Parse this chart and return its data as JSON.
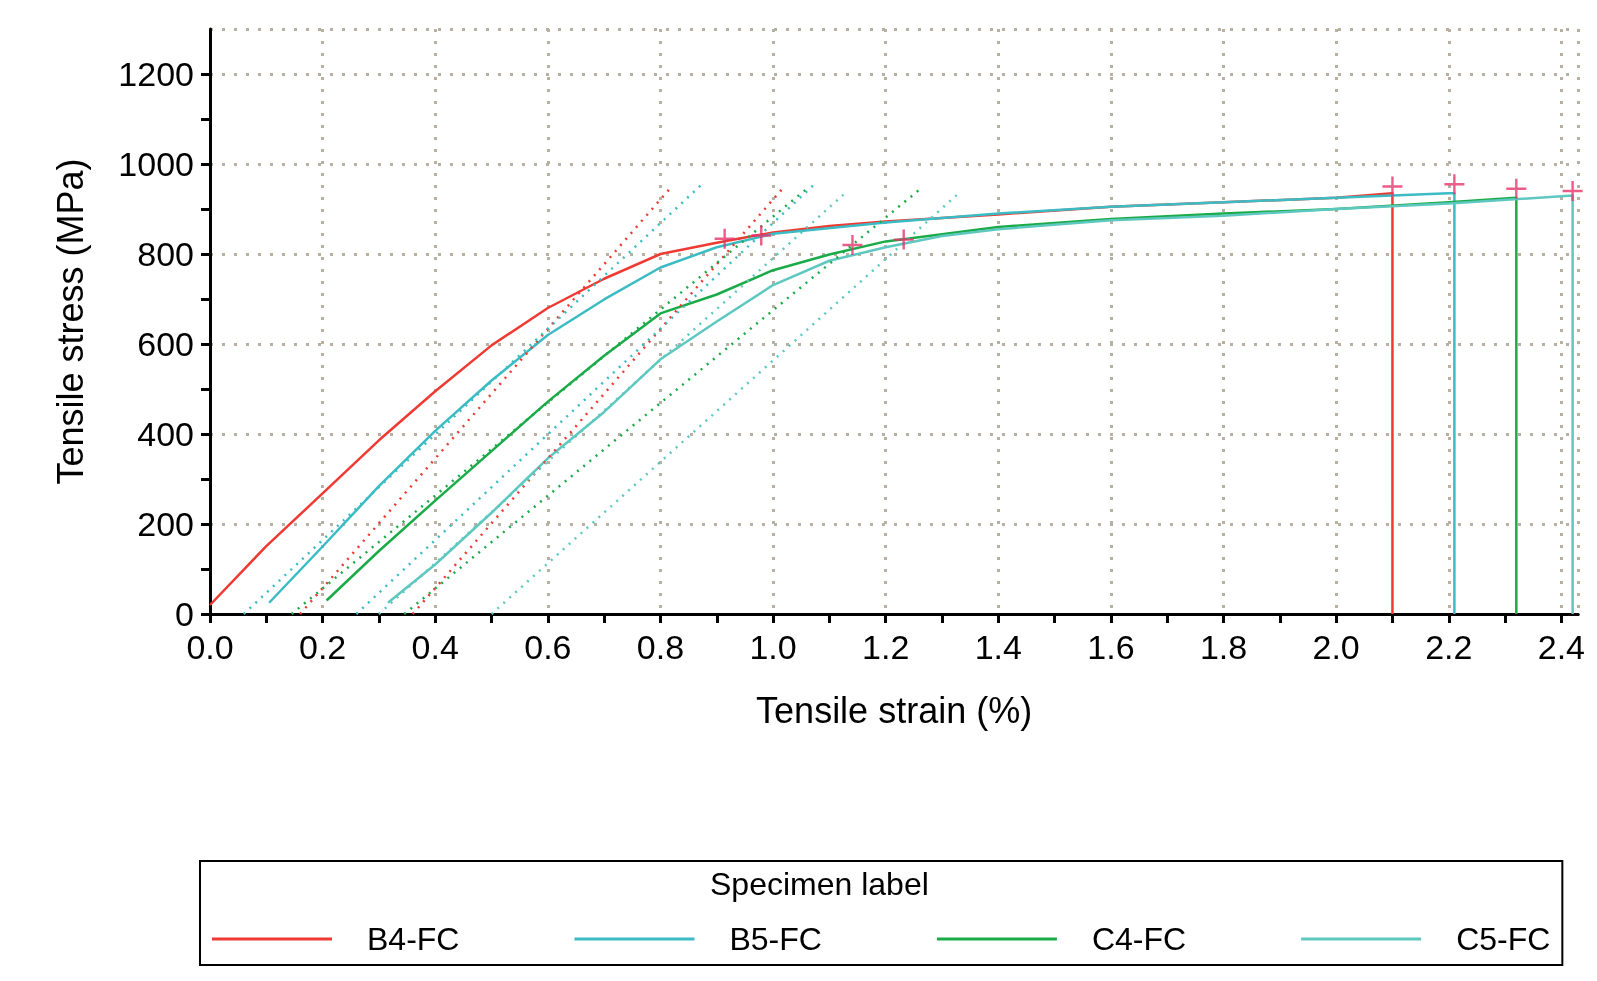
{
  "chart_data": {
    "type": "line",
    "xlabel": "Tensile strain (%)",
    "ylabel": "Tensile stress (MPa)",
    "legend_title": "Specimen label",
    "legend": "bottom",
    "grid": true,
    "marker": "none",
    "line_style": "solid",
    "xlim": [
      0,
      2.43
    ],
    "ylim": [
      0,
      1300
    ],
    "xticks": [
      {
        "value": 0,
        "label": "0.0"
      },
      {
        "value": 0.1,
        "label": null
      },
      0.2,
      {
        "value": 0.3,
        "label": null
      },
      0.4,
      {
        "value": 0.5,
        "label": null
      },
      0.6,
      {
        "value": 0.7,
        "label": null
      },
      0.8,
      {
        "value": 0.9,
        "label": null
      },
      {
        "value": 1,
        "label": "1.0"
      },
      {
        "value": 1.1,
        "label": null
      },
      1.2,
      {
        "value": 1.3,
        "label": null
      },
      1.4,
      {
        "value": 1.5,
        "label": null
      },
      1.6,
      {
        "value": 1.7,
        "label": null
      },
      1.8,
      {
        "value": 1.9,
        "label": null
      },
      {
        "value": 2,
        "label": "2.0"
      },
      {
        "value": 2.1,
        "label": null
      },
      2.2,
      {
        "value": 2.3,
        "label": null
      },
      2.4
    ],
    "yticks": [
      0,
      {
        "value": 100,
        "label": null
      },
      200,
      {
        "value": 300,
        "label": null
      },
      400,
      {
        "value": 500,
        "label": null
      },
      600,
      {
        "value": 700,
        "label": null
      },
      800,
      {
        "value": 900,
        "label": null
      },
      1000,
      {
        "value": 1100,
        "label": null
      },
      1200
    ],
    "series": [
      {
        "name": "B4-FC",
        "color": "#ee3a33",
        "x": [
          0,
          0.1,
          0.2,
          0.3,
          0.4,
          0.5,
          0.6,
          0.7,
          0.8,
          0.9,
          1.0,
          1.1,
          1.2,
          1.4,
          1.6,
          1.8,
          2.0,
          2.1,
          2.1
        ],
        "values": [
          20,
          151,
          268,
          386,
          495,
          597,
          680,
          745,
          800,
          825,
          848,
          862,
          872,
          888,
          905,
          915,
          925,
          935,
          0
        ]
      },
      {
        "name": "B5-FC",
        "color": "#3bbcc4",
        "x": [
          0.105,
          0.2,
          0.3,
          0.4,
          0.5,
          0.6,
          0.7,
          0.8,
          0.9,
          1.0,
          1.2,
          1.4,
          1.6,
          1.8,
          2.0,
          2.2,
          2.21,
          2.21
        ],
        "values": [
          25,
          150,
          284,
          407,
          519,
          620,
          699,
          770,
          815,
          845,
          870,
          890,
          905,
          915,
          925,
          935,
          935,
          0
        ]
      },
      {
        "name": "C4-FC",
        "color": "#1aab48",
        "x": [
          0.207,
          0.3,
          0.4,
          0.5,
          0.6,
          0.7,
          0.8,
          0.9,
          1.0,
          1.1,
          1.2,
          1.4,
          1.6,
          1.8,
          2.0,
          2.2,
          2.32,
          2.32
        ],
        "values": [
          30,
          140,
          252,
          362,
          472,
          574,
          668,
          710,
          764,
          799,
          828,
          860,
          878,
          890,
          900,
          915,
          925,
          0
        ]
      },
      {
        "name": "C5-FC",
        "color": "#5ec8c0",
        "x": [
          0.316,
          0.4,
          0.5,
          0.6,
          0.7,
          0.8,
          0.9,
          1.0,
          1.1,
          1.2,
          1.3,
          1.4,
          1.6,
          1.8,
          2.0,
          2.2,
          2.42,
          2.42
        ],
        "values": [
          25,
          110,
          225,
          346,
          449,
          566,
          650,
          731,
          785,
          815,
          840,
          855,
          875,
          885,
          900,
          912,
          930,
          0
        ]
      },
      {
        "type": "line",
        "line_style": "dotted",
        "color": "#ee3a33",
        "x": [
          0.16,
          0.82
        ],
        "values": [
          0,
          950
        ]
      },
      {
        "type": "line",
        "line_style": "dotted",
        "color": "#ee3a33",
        "x": [
          0.36,
          1.02
        ],
        "values": [
          0,
          950
        ]
      },
      {
        "type": "line",
        "line_style": "dotted",
        "color": "#3bbcc4",
        "x": [
          0.06,
          0.877
        ],
        "values": [
          0,
          959
        ]
      },
      {
        "type": "line",
        "line_style": "dotted",
        "color": "#3bbcc4",
        "x": [
          0.26,
          1.075
        ],
        "values": [
          0,
          957
        ]
      },
      {
        "type": "line",
        "line_style": "dotted",
        "color": "#1aab48",
        "x": [
          0.145,
          1.057
        ],
        "values": [
          0,
          942
        ]
      },
      {
        "type": "line",
        "line_style": "dotted",
        "color": "#1aab48",
        "x": [
          0.345,
          1.259
        ],
        "values": [
          0,
          942
        ]
      },
      {
        "type": "line",
        "line_style": "dotted",
        "color": "#5ec8c0",
        "x": [
          0.3,
          1.125
        ],
        "values": [
          0,
          932
        ]
      },
      {
        "type": "line",
        "line_style": "dotted",
        "color": "#5ec8c0",
        "x": [
          0.5,
          1.327
        ],
        "values": [
          0,
          932
        ]
      },
      {
        "type": "scatter",
        "marker": "cross",
        "color": "#e6336b",
        "x": [
          0.914,
          0.979,
          1.141,
          1.232,
          2.1,
          2.21,
          2.32,
          2.42
        ],
        "values": [
          834,
          841,
          820,
          832,
          950,
          955,
          945,
          940
        ]
      }
    ]
  }
}
